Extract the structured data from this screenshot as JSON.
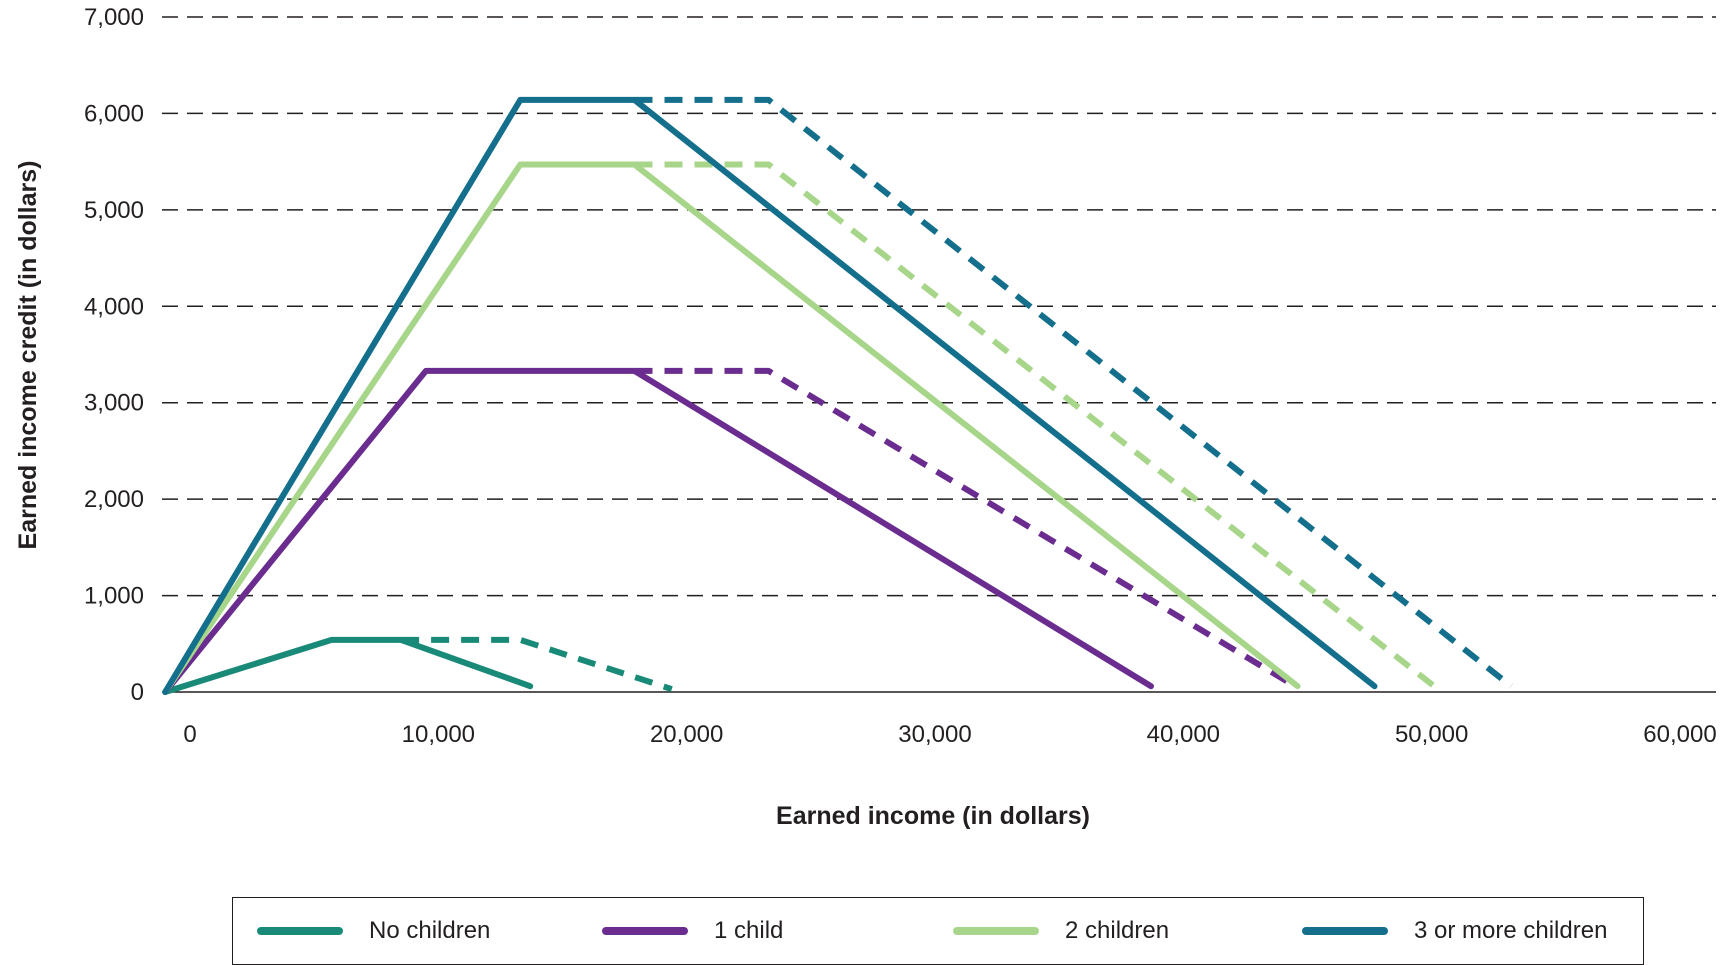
{
  "chart_data": {
    "type": "line",
    "xlabel": "Earned income (in dollars)",
    "ylabel": "Earned income credit (in dollars)",
    "xlim": [
      -1000,
      60000
    ],
    "ylim": [
      0,
      7000
    ],
    "x_ticks": [
      "0",
      "10,000",
      "20,000",
      "30,000",
      "40,000",
      "50,000",
      "60,000"
    ],
    "x_tick_values": [
      0,
      10000,
      20000,
      30000,
      40000,
      50000,
      60000
    ],
    "y_ticks": [
      "0",
      "1,000",
      "2,000",
      "3,000",
      "4,000",
      "5,000",
      "6,000",
      "7,000"
    ],
    "y_tick_values": [
      0,
      1000,
      2000,
      3000,
      4000,
      5000,
      6000,
      7000
    ],
    "grid": "horizontal dashed",
    "legend_position": "bottom",
    "series": [
      {
        "name": "No children",
        "color": "#1a8a78",
        "style": "solid",
        "x": [
          -1000,
          5700,
          8500,
          13700
        ],
        "y": [
          0,
          540,
          540,
          60
        ]
      },
      {
        "name": "No children",
        "color": "#1a8a78",
        "style": "dashed",
        "in_legend": false,
        "x": [
          8500,
          13300,
          19400
        ],
        "y": [
          540,
          540,
          30
        ]
      },
      {
        "name": "1 child",
        "color": "#6b2c8f",
        "style": "solid",
        "x": [
          -1000,
          9500,
          17900,
          38700
        ],
        "y": [
          0,
          3330,
          3330,
          60
        ]
      },
      {
        "name": "1 child",
        "color": "#6b2c8f",
        "style": "dashed",
        "in_legend": false,
        "x": [
          17900,
          23300,
          44500
        ],
        "y": [
          3330,
          3330,
          60
        ]
      },
      {
        "name": "2 children",
        "color": "#a7d68a",
        "style": "solid",
        "x": [
          -1000,
          13300,
          17900,
          44600
        ],
        "y": [
          0,
          5470,
          5470,
          60
        ]
      },
      {
        "name": "2 children",
        "color": "#a7d68a",
        "style": "dashed",
        "in_legend": false,
        "x": [
          17900,
          23300,
          50100
        ],
        "y": [
          5470,
          5470,
          60
        ]
      },
      {
        "name": "3 or more children",
        "color": "#136f8c",
        "style": "solid",
        "x": [
          -1000,
          13300,
          17900,
          47700
        ],
        "y": [
          0,
          6140,
          6140,
          60
        ]
      },
      {
        "name": "3 or more children",
        "color": "#136f8c",
        "style": "dashed",
        "in_legend": false,
        "x": [
          17900,
          23300,
          53200
        ],
        "y": [
          6140,
          6140,
          60
        ]
      }
    ]
  },
  "legend": [
    {
      "label": "No children",
      "color": "#1a8a78"
    },
    {
      "label": "1 child",
      "color": "#6b2c8f"
    },
    {
      "label": "2 children",
      "color": "#a7d68a"
    },
    {
      "label": "3 or more children",
      "color": "#136f8c"
    }
  ]
}
